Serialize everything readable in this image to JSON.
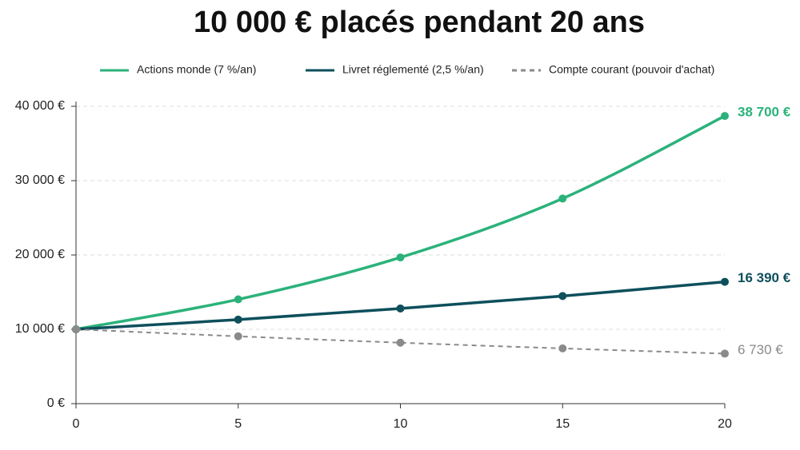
{
  "chart_data": {
    "type": "line",
    "title": "10 000 € placés pendant 20 ans",
    "x": [
      0,
      5,
      10,
      15,
      20
    ],
    "series": [
      {
        "name": "Actions monde (7 %/an)",
        "color": "#2bb27a",
        "style": "solid",
        "values": [
          10000,
          14030,
          19670,
          27590,
          38700
        ],
        "value_labels": [
          null,
          null,
          null,
          null,
          "38 700 €"
        ]
      },
      {
        "name": "Livret réglementé (2,5 %/an)",
        "color": "#0e4f5c",
        "style": "solid",
        "values": [
          10000,
          11310,
          12800,
          14480,
          16390
        ],
        "value_labels": [
          null,
          null,
          null,
          null,
          "16 390 €"
        ]
      },
      {
        "name": "Compte courant (pouvoir d'achat)",
        "color": "#8a8a8a",
        "style": "dashed",
        "values": [
          10000,
          9060,
          8200,
          7430,
          6730
        ],
        "value_labels": [
          null,
          null,
          null,
          null,
          "6 730 €"
        ]
      }
    ],
    "xlim": [
      0,
      20
    ],
    "xticks": [
      0,
      5,
      10,
      15,
      20
    ],
    "ylim": [
      0,
      40000
    ],
    "yticks": [
      {
        "value": 0,
        "label": "0 €"
      },
      {
        "value": 10000,
        "label": "10 000 €"
      },
      {
        "value": 20000,
        "label": "20 000 €"
      },
      {
        "value": 30000,
        "label": "30 000 €"
      },
      {
        "value": 40000,
        "label": "40 000 €"
      }
    ],
    "grid": true,
    "legend": "top"
  }
}
